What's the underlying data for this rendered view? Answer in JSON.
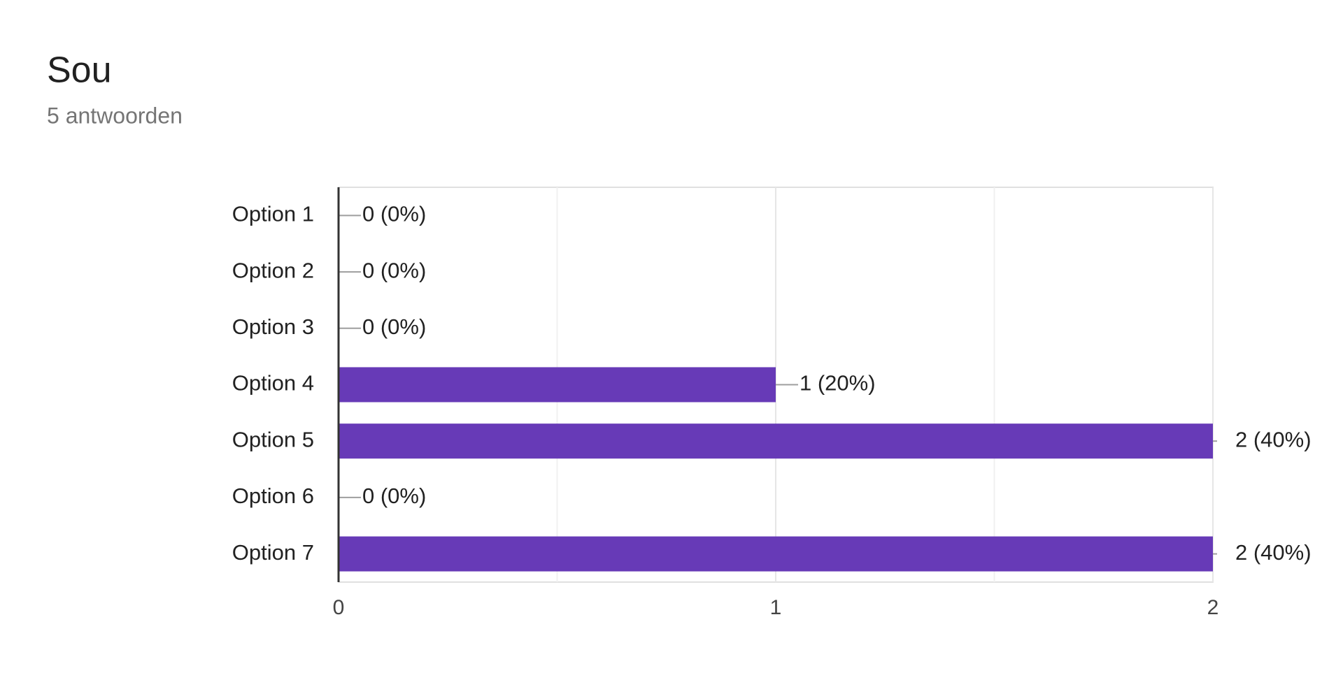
{
  "chart_data": {
    "type": "bar",
    "orientation": "horizontal",
    "title": "Sou",
    "subtitle": "5 antwoorden",
    "categories": [
      "Option 1",
      "Option 2",
      "Option 3",
      "Option 4",
      "Option 5",
      "Option 6",
      "Option 7"
    ],
    "values": [
      0,
      0,
      0,
      1,
      2,
      0,
      2
    ],
    "value_labels": [
      "0 (0%)",
      "0 (0%)",
      "0 (0%)",
      "1 (20%)",
      "2 (40%)",
      "0 (0%)",
      "2 (40%)"
    ],
    "color": "#673ab7",
    "xlim": [
      0,
      2
    ],
    "xticks": [
      0,
      1,
      2
    ],
    "minor_xticks": [
      0.5,
      1.5
    ],
    "grid": true
  }
}
